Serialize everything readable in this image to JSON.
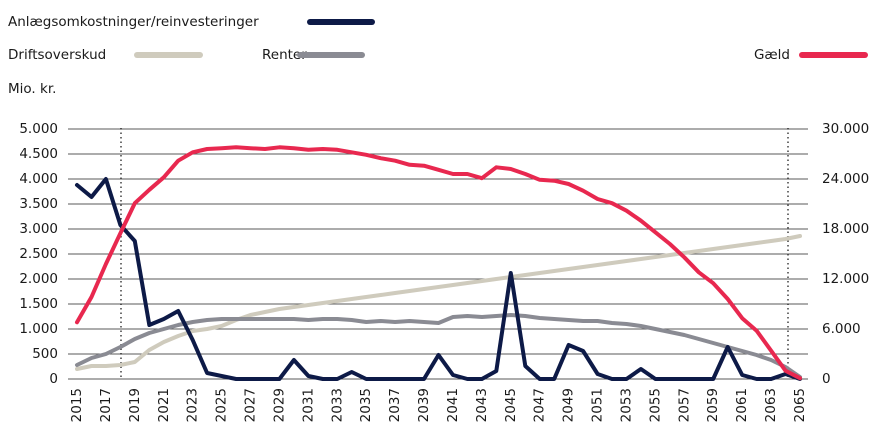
{
  "chart_data": {
    "type": "line",
    "y_label": "Mio. kr.",
    "categories": [
      "2015",
      null,
      "2017",
      null,
      "2019",
      null,
      "2021",
      null,
      "2023",
      null,
      "2025",
      null,
      "2027",
      null,
      "2029",
      null,
      "2031",
      null,
      "2033",
      null,
      "2035",
      null,
      "2037",
      null,
      "2039",
      null,
      "2041",
      null,
      "2043",
      null,
      "2045",
      null,
      "2047",
      null,
      "2049",
      null,
      "2051",
      null,
      "2053",
      null,
      "2055",
      null,
      "2057",
      null,
      "2059",
      null,
      "2061",
      null,
      "2063",
      null,
      "2065"
    ],
    "series": [
      {
        "name": "Anlægsomkostninger/reinvesteringer",
        "color": "#0d1a47",
        "values": [
          3880,
          3640,
          4000,
          3080,
          2760,
          1080,
          1200,
          1360,
          780,
          120,
          60,
          0,
          0,
          0,
          0,
          380,
          60,
          0,
          0,
          140,
          0,
          0,
          0,
          0,
          0,
          480,
          80,
          0,
          0,
          160,
          2120,
          260,
          0,
          0,
          680,
          560,
          100,
          0,
          0,
          200,
          0,
          0,
          0,
          0,
          0,
          640,
          80,
          0,
          0,
          100,
          0
        ]
      },
      {
        "name": "Driftsoverskud",
        "color": "#cfcbbd",
        "values": [
          200,
          260,
          260,
          280,
          340,
          580,
          740,
          860,
          960,
          1000,
          1060,
          1180,
          1280,
          1340,
          1400,
          1440,
          1480,
          1520,
          1560,
          1600,
          1640,
          1680,
          1720,
          1760,
          1800,
          1840,
          1880,
          1920,
          1960,
          2000,
          2040,
          2080,
          2120,
          2160,
          2200,
          2240,
          2280,
          2320,
          2360,
          2400,
          2440,
          2480,
          2520,
          2560,
          2600,
          2640,
          2680,
          2720,
          2760,
          2800,
          2860
        ]
      },
      {
        "name": "Renter",
        "color": "#8a8b93",
        "values": [
          280,
          420,
          500,
          640,
          800,
          920,
          1000,
          1080,
          1140,
          1180,
          1200,
          1200,
          1200,
          1200,
          1200,
          1200,
          1180,
          1200,
          1200,
          1180,
          1140,
          1160,
          1140,
          1160,
          1140,
          1120,
          1240,
          1260,
          1240,
          1260,
          1280,
          1260,
          1220,
          1200,
          1180,
          1160,
          1160,
          1120,
          1100,
          1060,
          1000,
          940,
          880,
          800,
          720,
          640,
          560,
          480,
          380,
          240,
          40
        ]
      },
      {
        "name": "Gæld",
        "color": "#e8284f",
        "axis": "y2",
        "values": [
          6800,
          9840,
          13800,
          17500,
          21100,
          22700,
          24200,
          26200,
          27200,
          27600,
          27700,
          27800,
          27700,
          27600,
          27800,
          27700,
          27500,
          27600,
          27500,
          27200,
          26900,
          26500,
          26200,
          25700,
          25600,
          25100,
          24600,
          24600,
          24100,
          25400,
          25200,
          24600,
          23900,
          23800,
          23400,
          22600,
          21600,
          21100,
          20200,
          19000,
          17600,
          16200,
          14600,
          12800,
          11500,
          9600,
          7300,
          5800,
          3400,
          1000,
          100
        ]
      }
    ],
    "ylim": [
      0,
      5000
    ],
    "yticks": [
      0,
      500,
      {
        "value": 1000,
        "label": "1.000"
      },
      {
        "value": 1500,
        "label": "1.500"
      },
      {
        "value": 2000,
        "label": "2.000"
      },
      {
        "value": 2500,
        "label": "2.500"
      },
      {
        "value": 3000,
        "label": "3.000"
      },
      {
        "value": 3500,
        "label": "3.500"
      },
      {
        "value": 4000,
        "label": "4.000"
      },
      {
        "value": 4500,
        "label": "4.500"
      },
      {
        "value": 5000,
        "label": "5.000"
      }
    ],
    "y2lim": [
      0,
      30000
    ],
    "y2ticks": [
      0,
      {
        "value": 6000,
        "label": "6.000"
      },
      {
        "value": 12000,
        "label": "12.000"
      },
      {
        "value": 18000,
        "label": "18.000"
      },
      {
        "value": 24000,
        "label": "24.000"
      },
      {
        "value": 30000,
        "label": "30.000"
      }
    ],
    "grid": true
  }
}
